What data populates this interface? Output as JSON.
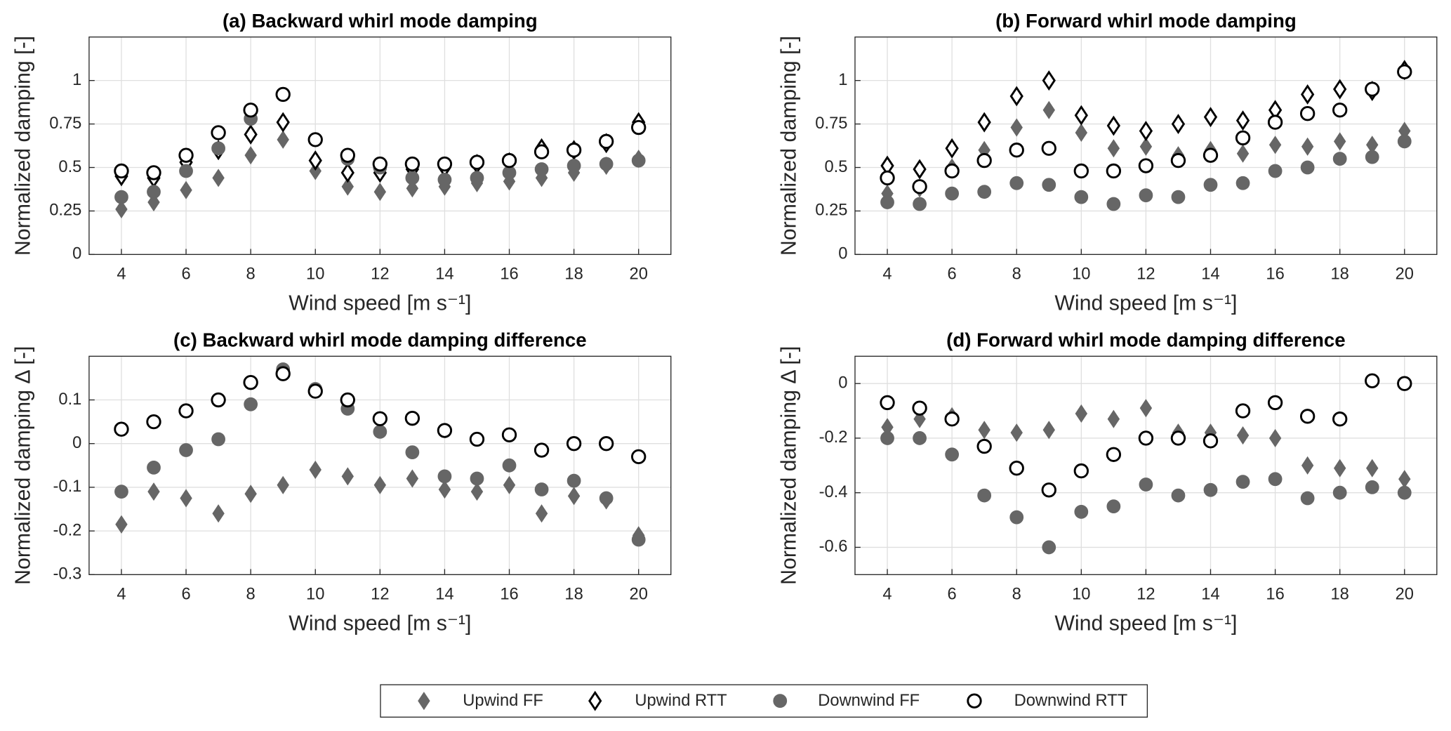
{
  "chart_data": [
    {
      "type": "scatter",
      "title": "(a) Backward whirl mode damping",
      "x_label": "Wind speed [m s⁻¹]",
      "y_label": "Normalized damping [-]",
      "x": [
        4,
        5,
        6,
        7,
        8,
        9,
        10,
        11,
        12,
        13,
        14,
        15,
        16,
        17,
        18,
        19,
        20
      ],
      "xlim": [
        3,
        21
      ],
      "xticks": [
        4,
        6,
        8,
        10,
        12,
        14,
        16,
        18,
        20
      ],
      "ylim": [
        0,
        1.25
      ],
      "yticks": [
        0,
        0.25,
        0.5,
        0.75,
        1
      ],
      "grid": true,
      "series": [
        {
          "name": "Upwind FF",
          "marker": "diamond",
          "color": "#666666",
          "filled": true,
          "values": [
            0.26,
            0.3,
            0.37,
            0.44,
            0.57,
            0.66,
            0.48,
            0.39,
            0.36,
            0.38,
            0.39,
            0.41,
            0.42,
            0.44,
            0.47,
            0.51,
            0.55
          ]
        },
        {
          "name": "Upwind RTT",
          "marker": "diamond",
          "color": "#000000",
          "filled": false,
          "values": [
            0.45,
            0.44,
            0.53,
            0.6,
            0.69,
            0.76,
            0.54,
            0.47,
            0.47,
            0.49,
            0.5,
            0.52,
            0.53,
            0.61,
            0.6,
            0.64,
            0.76
          ]
        },
        {
          "name": "Downwind FF",
          "marker": "circle",
          "color": "#666666",
          "filled": true,
          "values": [
            0.33,
            0.36,
            0.48,
            0.61,
            0.78,
            0.92,
            0.66,
            0.55,
            0.5,
            0.44,
            0.43,
            0.44,
            0.47,
            0.49,
            0.51,
            0.52,
            0.54
          ]
        },
        {
          "name": "Downwind RTT",
          "marker": "circle",
          "color": "#000000",
          "filled": false,
          "values": [
            0.48,
            0.47,
            0.57,
            0.7,
            0.83,
            0.92,
            0.66,
            0.57,
            0.52,
            0.52,
            0.52,
            0.53,
            0.54,
            0.59,
            0.6,
            0.65,
            0.73
          ]
        }
      ]
    },
    {
      "type": "scatter",
      "title": "(b) Forward whirl mode damping",
      "x_label": "Wind speed [m s⁻¹]",
      "y_label": "Normalized damping [-]",
      "x": [
        4,
        5,
        6,
        7,
        8,
        9,
        10,
        11,
        12,
        13,
        14,
        15,
        16,
        17,
        18,
        19,
        20
      ],
      "xlim": [
        3,
        21
      ],
      "xticks": [
        4,
        6,
        8,
        10,
        12,
        14,
        16,
        18,
        20
      ],
      "ylim": [
        0,
        1.25
      ],
      "yticks": [
        0,
        0.25,
        0.5,
        0.75,
        1
      ],
      "grid": true,
      "series": [
        {
          "name": "Upwind FF",
          "marker": "diamond",
          "color": "#666666",
          "filled": true,
          "values": [
            0.35,
            0.38,
            0.5,
            0.6,
            0.73,
            0.83,
            0.7,
            0.61,
            0.62,
            0.57,
            0.6,
            0.58,
            0.63,
            0.62,
            0.65,
            0.63,
            0.71
          ]
        },
        {
          "name": "Upwind RTT",
          "marker": "diamond",
          "color": "#000000",
          "filled": false,
          "values": [
            0.51,
            0.49,
            0.61,
            0.76,
            0.91,
            1.0,
            0.8,
            0.74,
            0.71,
            0.75,
            0.79,
            0.77,
            0.83,
            0.92,
            0.95,
            0.94,
            1.06
          ]
        },
        {
          "name": "Downwind FF",
          "marker": "circle",
          "color": "#666666",
          "filled": true,
          "values": [
            0.3,
            0.29,
            0.35,
            0.36,
            0.41,
            0.4,
            0.33,
            0.29,
            0.34,
            0.33,
            0.4,
            0.41,
            0.48,
            0.5,
            0.55,
            0.56,
            0.65
          ]
        },
        {
          "name": "Downwind RTT",
          "marker": "circle",
          "color": "#000000",
          "filled": false,
          "values": [
            0.44,
            0.39,
            0.48,
            0.54,
            0.6,
            0.61,
            0.48,
            0.48,
            0.51,
            0.54,
            0.57,
            0.67,
            0.76,
            0.81,
            0.83,
            0.95,
            1.05
          ]
        }
      ]
    },
    {
      "type": "scatter",
      "title": "(c) Backward whirl mode damping difference",
      "x_label": "Wind speed [m s⁻¹]",
      "y_label": "Normalized damping Δ [-]",
      "x": [
        4,
        5,
        6,
        7,
        8,
        9,
        10,
        11,
        12,
        13,
        14,
        15,
        16,
        17,
        18,
        19,
        20
      ],
      "xlim": [
        3,
        21
      ],
      "xticks": [
        4,
        6,
        8,
        10,
        12,
        14,
        16,
        18,
        20
      ],
      "ylim": [
        -0.3,
        0.2
      ],
      "yticks": [
        -0.3,
        -0.2,
        -0.1,
        0,
        0.1
      ],
      "grid": true,
      "series": [
        {
          "name": "Upwind FF",
          "marker": "diamond",
          "color": "#666666",
          "filled": true,
          "values": [
            -0.185,
            -0.11,
            -0.125,
            -0.16,
            -0.115,
            -0.095,
            -0.06,
            -0.075,
            -0.095,
            -0.08,
            -0.105,
            -0.11,
            -0.095,
            -0.16,
            -0.12,
            -0.13,
            -0.21
          ]
        },
        {
          "name": "Downwind FF",
          "marker": "circle",
          "color": "#666666",
          "filled": true,
          "values": [
            -0.11,
            -0.055,
            -0.015,
            0.01,
            0.09,
            0.17,
            0.125,
            0.08,
            0.027,
            -0.02,
            -0.075,
            -0.08,
            -0.05,
            -0.105,
            -0.085,
            -0.125,
            -0.22
          ]
        },
        {
          "name": "Downwind RTT",
          "marker": "circle",
          "color": "#000000",
          "filled": false,
          "values": [
            0.033,
            0.05,
            0.075,
            0.1,
            0.14,
            0.16,
            0.12,
            0.1,
            0.057,
            0.058,
            0.03,
            0.01,
            0.02,
            -0.015,
            0.0,
            0.0,
            -0.03
          ]
        }
      ]
    },
    {
      "type": "scatter",
      "title": "(d) Forward whirl mode damping difference",
      "x_label": "Wind speed [m s⁻¹]",
      "y_label": "Normalized damping Δ [-]",
      "x": [
        4,
        5,
        6,
        7,
        8,
        9,
        10,
        11,
        12,
        13,
        14,
        15,
        16,
        17,
        18,
        19,
        20
      ],
      "xlim": [
        3,
        21
      ],
      "xticks": [
        4,
        6,
        8,
        10,
        12,
        14,
        16,
        18,
        20
      ],
      "ylim": [
        -0.7,
        0.1
      ],
      "yticks": [
        -0.6,
        -0.4,
        -0.2,
        0
      ],
      "grid": true,
      "series": [
        {
          "name": "Upwind FF",
          "marker": "diamond",
          "color": "#666666",
          "filled": true,
          "values": [
            -0.16,
            -0.13,
            -0.12,
            -0.17,
            -0.18,
            -0.17,
            -0.11,
            -0.13,
            -0.09,
            -0.18,
            -0.18,
            -0.19,
            -0.2,
            -0.3,
            -0.31,
            -0.31,
            -0.35
          ]
        },
        {
          "name": "Downwind FF",
          "marker": "circle",
          "color": "#666666",
          "filled": true,
          "values": [
            -0.2,
            -0.2,
            -0.26,
            -0.41,
            -0.49,
            -0.6,
            -0.47,
            -0.45,
            -0.37,
            -0.41,
            -0.39,
            -0.36,
            -0.35,
            -0.42,
            -0.4,
            -0.38,
            -0.4
          ]
        },
        {
          "name": "Downwind RTT",
          "marker": "circle",
          "color": "#000000",
          "filled": false,
          "values": [
            -0.07,
            -0.09,
            -0.13,
            -0.23,
            -0.31,
            -0.39,
            -0.32,
            -0.26,
            -0.2,
            -0.2,
            -0.21,
            -0.1,
            -0.07,
            -0.12,
            -0.13,
            0.01,
            0.0
          ]
        }
      ]
    }
  ]
}
